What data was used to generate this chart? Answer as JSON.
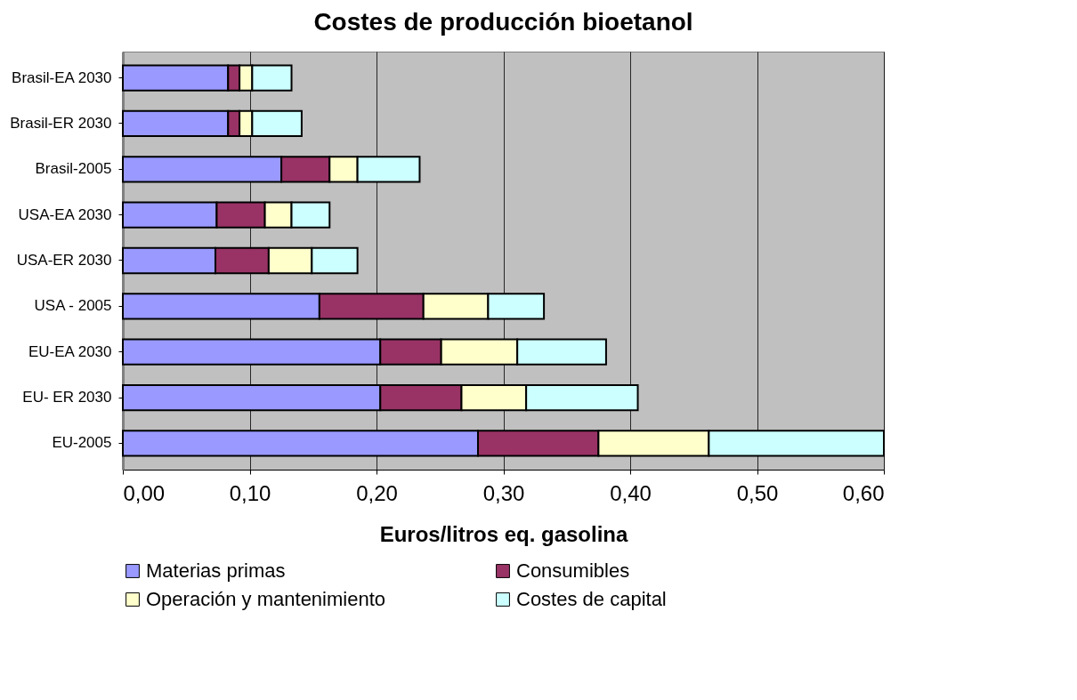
{
  "chart_data": {
    "type": "bar",
    "orientation": "horizontal",
    "stacked": true,
    "title": "Costes de producción bioetanol",
    "xlabel": "Euros/litros eq. gasolina",
    "categories": [
      "Brasil-EA 2030",
      "Brasil-ER 2030",
      "Brasil-2005",
      "USA-EA 2030",
      "USA-ER 2030",
      "USA - 2005",
      "EU-EA 2030",
      "EU- ER 2030",
      "EU-2005"
    ],
    "series": [
      {
        "name": "Materias primas",
        "color": "#9999ff",
        "values": [
          0.083,
          0.083,
          0.125,
          0.074,
          0.073,
          0.155,
          0.203,
          0.203,
          0.28
        ]
      },
      {
        "name": "Consumibles",
        "color": "#993366",
        "values": [
          0.009,
          0.009,
          0.038,
          0.038,
          0.042,
          0.082,
          0.048,
          0.064,
          0.095
        ]
      },
      {
        "name": "Operación y mantenimiento",
        "color": "#ffffcc",
        "values": [
          0.01,
          0.01,
          0.022,
          0.021,
          0.034,
          0.051,
          0.06,
          0.051,
          0.087
        ]
      },
      {
        "name": "Costes de capital",
        "color": "#ccffff",
        "values": [
          0.031,
          0.039,
          0.049,
          0.03,
          0.036,
          0.044,
          0.07,
          0.088,
          0.138
        ]
      }
    ],
    "xlim": [
      0,
      0.6
    ],
    "xticks": [
      {
        "value": 0,
        "label": "0,00"
      },
      {
        "value": 0.1,
        "label": "0,10"
      },
      {
        "value": 0.2,
        "label": "0,20"
      },
      {
        "value": 0.3,
        "label": "0,30"
      },
      {
        "value": 0.4,
        "label": "0,40"
      },
      {
        "value": 0.5,
        "label": "0,50"
      },
      {
        "value": 0.6,
        "label": "0,60"
      }
    ],
    "grid": "x",
    "legend": "bottom"
  }
}
